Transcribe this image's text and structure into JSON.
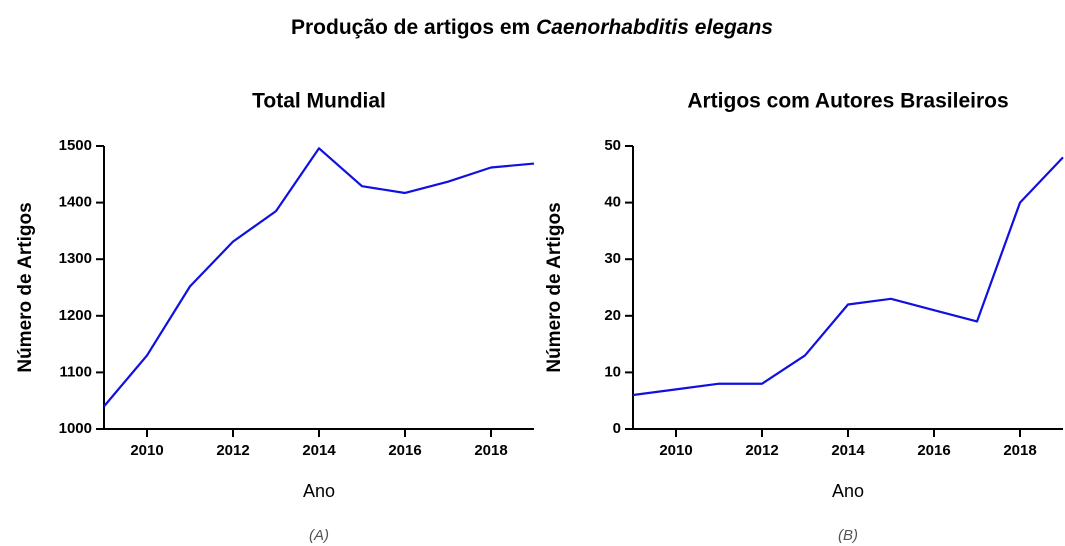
{
  "title": "Produção de artigos em",
  "title_species": "Caenorhabditis elegans",
  "chart_data": [
    {
      "type": "line",
      "title": "Total Mundial",
      "x_label": "Ano",
      "y_label": "Número de Artigos",
      "caption": "(A)",
      "x": [
        2009,
        2010,
        2011,
        2012,
        2013,
        2014,
        2015,
        2016,
        2017,
        2018,
        2019
      ],
      "series": [
        {
          "name": "Total Mundial",
          "color": "#1010e0",
          "values": [
            1040,
            1130,
            1252,
            1331,
            1385,
            1496,
            1429,
            1417,
            1437,
            1462,
            1469
          ]
        }
      ],
      "xlim": [
        2009,
        2019
      ],
      "xticks": [
        2010,
        2012,
        2014,
        2016,
        2018
      ],
      "ylim": [
        1000,
        1500
      ],
      "yticks": [
        1000,
        1100,
        1200,
        1300,
        1400,
        1500
      ]
    },
    {
      "type": "line",
      "title": "Artigos com Autores Brasileiros",
      "x_label": "Ano",
      "y_label": "Número de Artigos",
      "caption": "(B)",
      "x": [
        2009,
        2010,
        2011,
        2012,
        2013,
        2014,
        2015,
        2016,
        2017,
        2018,
        2019
      ],
      "series": [
        {
          "name": "Artigos com Autores Brasileiros",
          "color": "#1010e0",
          "values": [
            6,
            7,
            8,
            8,
            13,
            22,
            23,
            21,
            19,
            40,
            48
          ]
        }
      ],
      "xlim": [
        2009,
        2019
      ],
      "xticks": [
        2010,
        2012,
        2014,
        2016,
        2018
      ],
      "ylim": [
        0,
        50
      ],
      "yticks": [
        0,
        10,
        20,
        30,
        40,
        50
      ]
    }
  ]
}
